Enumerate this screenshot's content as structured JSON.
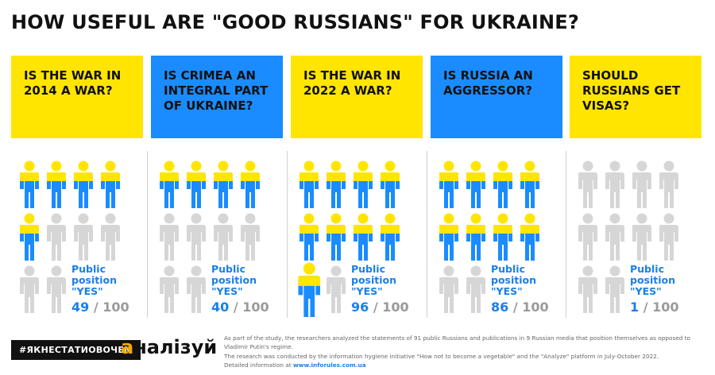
{
  "title": "HOW USEFUL ARE \"GOOD RUSSIANS\" FOR UKRAINE?",
  "colors": {
    "yellow": "#ffe500",
    "blue": "#1a8cff",
    "gray": "#d6d6d6",
    "accent": "#1a7fe8"
  },
  "columns": [
    {
      "question": "IS THE WAR IN 2014 A WAR?",
      "bg": "#ffe500",
      "label": "Public position \"YES\"",
      "value": "49",
      "sep": "/",
      "total": "100",
      "colored_count": 5,
      "last_colored_big": false
    },
    {
      "question": "IS CRIMEA AN INTEGRAL PART OF UKRAINE?",
      "bg": "#1a8cff",
      "label": "Public position \"YES\"",
      "value": "40",
      "sep": "/",
      "total": "100",
      "colored_count": 4,
      "last_colored_big": false
    },
    {
      "question": "IS THE WAR IN 2022 A WAR?",
      "bg": "#ffe500",
      "label": "Public position \"YES\"",
      "value": "96",
      "sep": "/",
      "total": "100",
      "colored_count": 9,
      "last_colored_big": true
    },
    {
      "question": "IS RUSSIA AN AGGRESSOR?",
      "bg": "#1a8cff",
      "label": "Public position \"YES\"",
      "value": "86",
      "sep": "/",
      "total": "100",
      "colored_count": 8,
      "last_colored_big": false
    },
    {
      "question": "SHOULD RUSSIANS GET VISAS?",
      "bg": "#ffe500",
      "label": "Public position \"YES\"",
      "value": "1",
      "sep": "/",
      "total": "100",
      "colored_count": 0,
      "last_colored_big": false
    }
  ],
  "footer": {
    "tag": "#ЯКНЕСТАТИОВОЧЕМ",
    "logo_accent": "а",
    "logo_rest": "налізуй",
    "note_line1": "As part of the study, the researchers analyzed the statements of 91 public Russians and publications in 9 Russian media that position themselves as opposed to Vladimir Putin's regime.",
    "note_line2": "The research was conducted by the information hygiene initiative \"How not to become a vegetable\" and the \"Analyze\" platform in July-October 2022.",
    "note_line3_prefix": "Detailed information at",
    "note_link": "www.inforules.com.ua"
  }
}
